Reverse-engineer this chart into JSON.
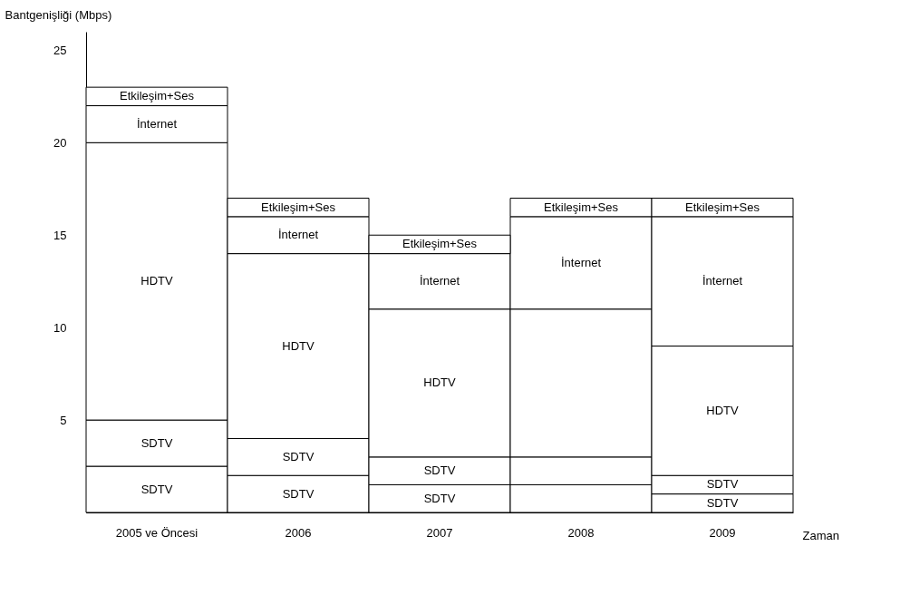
{
  "chart_data": {
    "type": "bar",
    "stacked": true,
    "xlabel": "Zaman",
    "ylabel": "Bantgenişliği (Mbps)",
    "categories": [
      "2005 ve Öncesi",
      "2006",
      "2007",
      "2008",
      "2009"
    ],
    "series": [
      {
        "color": "#ffffff",
        "values": [
          2.5,
          2,
          1.5,
          1.5,
          1
        ],
        "value_labels": [
          "SDTV",
          "SDTV",
          "SDTV",
          null,
          "SDTV"
        ]
      },
      {
        "color": "#ffffff",
        "values": [
          2.5,
          2,
          1.5,
          1.5,
          1
        ],
        "value_labels": [
          "SDTV",
          "SDTV",
          "SDTV",
          null,
          "SDTV"
        ]
      },
      {
        "color": "#ffffff",
        "values": [
          15,
          10,
          8,
          8,
          7
        ],
        "value_labels": [
          "HDTV",
          "HDTV",
          "HDTV",
          null,
          "HDTV"
        ]
      },
      {
        "color": "#ffffff",
        "values": [
          2,
          2,
          3,
          5,
          7
        ],
        "value_labels": [
          "İnternet",
          "İnternet",
          "İnternet",
          "İnternet",
          "İnternet"
        ]
      },
      {
        "color": "#ffffff",
        "values": [
          1,
          1,
          1,
          1,
          1
        ],
        "value_labels": [
          "Etkileşim+Ses",
          "Etkileşim+Ses",
          "Etkileşim+Ses",
          "Etkileşim+Ses",
          "Etkileşim+Ses"
        ]
      }
    ],
    "ylim": [
      0,
      26
    ],
    "yticks": [
      5,
      10,
      15,
      20,
      25
    ],
    "grid": false
  }
}
